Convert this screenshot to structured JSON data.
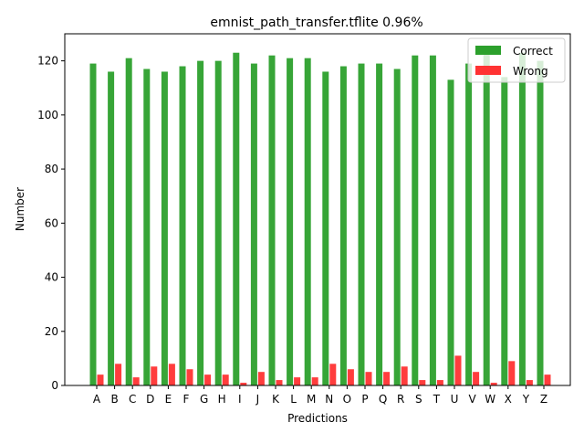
{
  "chart_data": {
    "type": "bar",
    "title": "emnist_path_transfer.tflite  0.96%",
    "xlabel": "Predictions",
    "ylabel": "Number",
    "categories": [
      "A",
      "B",
      "C",
      "D",
      "E",
      "F",
      "G",
      "H",
      "I",
      "J",
      "K",
      "L",
      "M",
      "N",
      "O",
      "P",
      "Q",
      "R",
      "S",
      "T",
      "U",
      "V",
      "W",
      "X",
      "Y",
      "Z"
    ],
    "series": [
      {
        "name": "Correct",
        "color": "#2ca02c",
        "values": [
          119,
          116,
          121,
          117,
          116,
          118,
          120,
          120,
          123,
          119,
          122,
          121,
          121,
          116,
          118,
          119,
          119,
          117,
          122,
          122,
          113,
          119,
          123,
          114,
          123,
          120
        ]
      },
      {
        "name": "Wrong",
        "color": "#ff3333",
        "values": [
          4,
          8,
          3,
          7,
          8,
          6,
          4,
          4,
          1,
          5,
          2,
          3,
          3,
          8,
          6,
          5,
          5,
          7,
          2,
          2,
          11,
          5,
          1,
          9,
          2,
          4
        ]
      }
    ],
    "ylim": [
      0,
      130
    ],
    "yticks": [
      0,
      20,
      40,
      60,
      80,
      100,
      120
    ],
    "grid": false,
    "legend_position": "top-right"
  }
}
